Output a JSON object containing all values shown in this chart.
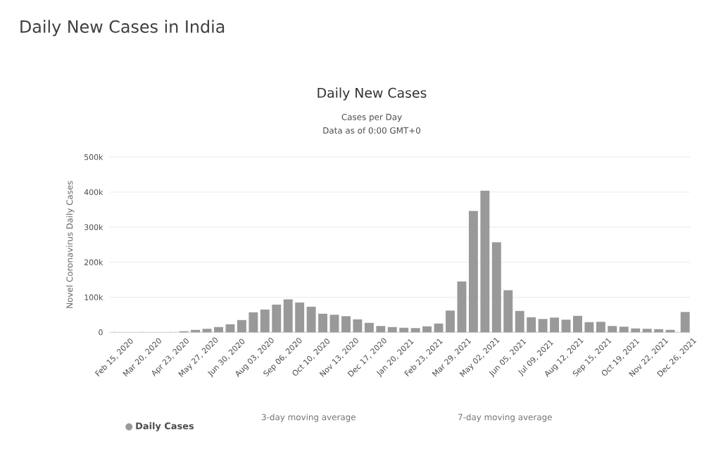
{
  "chart_data": {
    "type": "bar",
    "title": "Daily New Cases in India",
    "subtitle": "Daily New Cases",
    "annotations": [
      "Cases per Day",
      "Data as of 0:00 GMT+0",
      "3-day moving average",
      "7-day moving average"
    ],
    "ylabel": "Novel Coronavirus Daily Cases",
    "x": [
      "2020-02-15",
      "2020-02-29",
      "2020-03-14",
      "2020-03-28",
      "2020-04-11",
      "2020-04-25",
      "2020-05-09",
      "2020-05-23",
      "2020-06-06",
      "2020-06-20",
      "2020-07-04",
      "2020-07-18",
      "2020-08-01",
      "2020-08-15",
      "2020-08-29",
      "2020-09-12",
      "2020-09-26",
      "2020-10-10",
      "2020-10-24",
      "2020-11-07",
      "2020-11-21",
      "2020-12-05",
      "2020-12-19",
      "2021-01-02",
      "2021-01-16",
      "2021-01-30",
      "2021-02-13",
      "2021-02-27",
      "2021-03-13",
      "2021-03-27",
      "2021-04-10",
      "2021-04-24",
      "2021-05-08",
      "2021-05-22",
      "2021-06-05",
      "2021-06-19",
      "2021-07-03",
      "2021-07-17",
      "2021-07-31",
      "2021-08-14",
      "2021-08-28",
      "2021-09-11",
      "2021-09-25",
      "2021-10-09",
      "2021-10-23",
      "2021-11-06",
      "2021-11-20",
      "2021-12-04",
      "2021-12-18",
      "2022-01-05"
    ],
    "series": [
      {
        "name": "Daily Cases",
        "color": "#999999",
        "values": [
          0,
          0,
          0,
          0,
          0,
          0,
          3000,
          7000,
          10000,
          15000,
          23000,
          35000,
          57000,
          65000,
          79000,
          94000,
          85000,
          73000,
          53000,
          50000,
          46000,
          37000,
          27000,
          18000,
          15000,
          13000,
          12000,
          17000,
          25000,
          62000,
          145000,
          346000,
          404000,
          257000,
          120000,
          61000,
          43000,
          38000,
          42000,
          36000,
          47000,
          29000,
          30000,
          18000,
          16000,
          11000,
          10000,
          9000,
          7000,
          58000
        ]
      }
    ],
    "xlim": [
      "2020-02-09",
      "2022-01-11"
    ],
    "xticks": [
      {
        "value": "2020-02-15",
        "label": "Feb 15, 2020"
      },
      {
        "value": "2020-03-20",
        "label": "Mar 20, 2020"
      },
      {
        "value": "2020-04-23",
        "label": "Apr 23, 2020"
      },
      {
        "value": "2020-05-27",
        "label": "May 27, 2020"
      },
      {
        "value": "2020-06-30",
        "label": "Jun 30, 2020"
      },
      {
        "value": "2020-08-03",
        "label": "Aug 03, 2020"
      },
      {
        "value": "2020-09-06",
        "label": "Sep 06, 2020"
      },
      {
        "value": "2020-10-10",
        "label": "Oct 10, 2020"
      },
      {
        "value": "2020-11-13",
        "label": "Nov 13, 2020"
      },
      {
        "value": "2020-12-17",
        "label": "Dec 17, 2020"
      },
      {
        "value": "2021-01-20",
        "label": "Jan 20, 2021"
      },
      {
        "value": "2021-02-23",
        "label": "Feb 23, 2021"
      },
      {
        "value": "2021-03-29",
        "label": "Mar 29, 2021"
      },
      {
        "value": "2021-05-02",
        "label": "May 02, 2021"
      },
      {
        "value": "2021-06-05",
        "label": "Jun 05, 2021"
      },
      {
        "value": "2021-07-09",
        "label": "Jul 09, 2021"
      },
      {
        "value": "2021-08-12",
        "label": "Aug 12, 2021"
      },
      {
        "value": "2021-09-15",
        "label": "Sep 15, 2021"
      },
      {
        "value": "2021-10-19",
        "label": "Oct 19, 2021"
      },
      {
        "value": "2021-11-22",
        "label": "Nov 22, 2021"
      },
      {
        "value": "2021-12-26",
        "label": "Dec 26, 2021"
      }
    ],
    "ylim": [
      0,
      500000
    ],
    "yticks": [
      0,
      {
        "value": 100000,
        "label": "100k"
      },
      {
        "value": 200000,
        "label": "200k"
      },
      {
        "value": 300000,
        "label": "300k"
      },
      {
        "value": 400000,
        "label": "400k"
      },
      {
        "value": 500000,
        "label": "500k"
      }
    ],
    "grid": "y",
    "legend": "bottom left"
  }
}
